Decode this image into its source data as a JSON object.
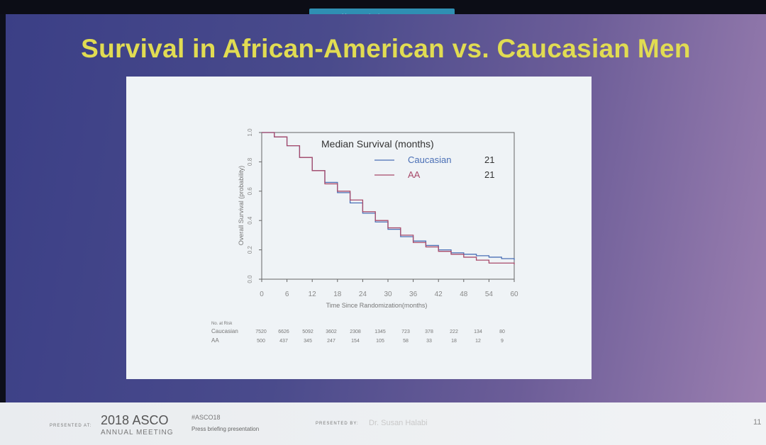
{
  "banner": {
    "text": "You are sharing your screen"
  },
  "slide": {
    "title": "Survival in African-American vs. Caucasian Men",
    "number": "11"
  },
  "footer": {
    "presented_at": "PRESENTED AT:",
    "asco_year": "2018",
    "asco_name": "ASCO",
    "meeting": "ANNUAL MEETING",
    "hashtag": "#ASCO18",
    "press": "Press briefing presentation",
    "presented_by": "PRESENTED BY:",
    "presenter": "Dr. Susan Halabi"
  },
  "chart_data": {
    "type": "line",
    "xlabel": "Time Since Randomization(months)",
    "ylabel": "Overall Survival (probability)",
    "xlim": [
      0,
      60
    ],
    "ylim": [
      0,
      1
    ],
    "xticks": [
      0,
      6,
      12,
      18,
      24,
      30,
      36,
      42,
      48,
      54,
      60
    ],
    "yticks": [
      0.0,
      0.2,
      0.4,
      0.6,
      0.8,
      1.0
    ],
    "xtick_labels": [
      "0",
      "6",
      "12",
      "18",
      "24",
      "30",
      "36",
      "42",
      "48",
      "54",
      "60"
    ],
    "ytick_labels": [
      "0.0",
      "0.2",
      "0.4",
      "0.6",
      "0.8",
      "1.0"
    ],
    "legend": {
      "title": "Median Survival (months)",
      "placement": "top-right",
      "entries": [
        {
          "name": "Caucasian",
          "value": "21",
          "color": "#4a6fb5"
        },
        {
          "name": "AA",
          "value": "21",
          "color": "#a84a6a"
        }
      ]
    },
    "series": [
      {
        "name": "Caucasian",
        "color": "#4a6fb5",
        "x": [
          0,
          3,
          6,
          9,
          12,
          15,
          18,
          21,
          24,
          27,
          30,
          33,
          36,
          39,
          42,
          45,
          48,
          51,
          54,
          57,
          60
        ],
        "y": [
          1.0,
          0.97,
          0.91,
          0.83,
          0.74,
          0.66,
          0.59,
          0.52,
          0.45,
          0.39,
          0.34,
          0.29,
          0.26,
          0.23,
          0.2,
          0.18,
          0.17,
          0.16,
          0.15,
          0.14,
          0.13
        ]
      },
      {
        "name": "AA",
        "color": "#a84a6a",
        "x": [
          0,
          3,
          6,
          9,
          12,
          15,
          18,
          21,
          24,
          27,
          30,
          33,
          36,
          39,
          42,
          45,
          48,
          51,
          54,
          57,
          60
        ],
        "y": [
          1.0,
          0.97,
          0.91,
          0.83,
          0.74,
          0.65,
          0.6,
          0.54,
          0.46,
          0.4,
          0.35,
          0.3,
          0.25,
          0.22,
          0.19,
          0.17,
          0.15,
          0.13,
          0.11,
          0.11,
          0.1
        ]
      }
    ],
    "at_risk": {
      "header": "No. at Risk",
      "rows": [
        {
          "label": "Caucasian",
          "values": [
            "7520",
            "6626",
            "5092",
            "3602",
            "2308",
            "1345",
            "723",
            "378",
            "222",
            "134",
            "80"
          ]
        },
        {
          "label": "AA",
          "values": [
            "500",
            "437",
            "345",
            "247",
            "154",
            "105",
            "58",
            "33",
            "18",
            "12",
            "9"
          ]
        }
      ]
    }
  }
}
